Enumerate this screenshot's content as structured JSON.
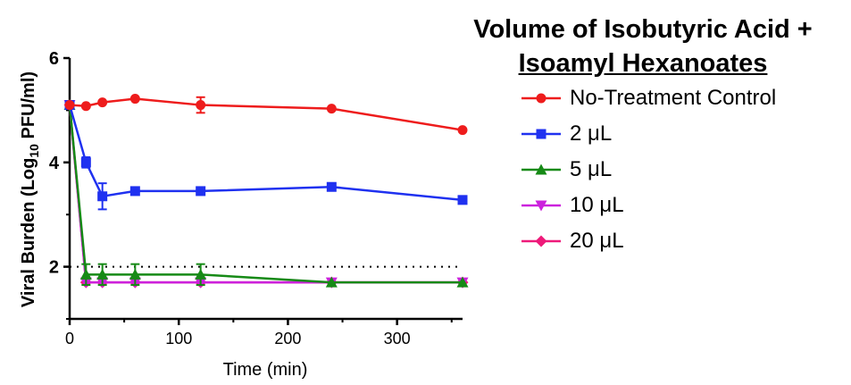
{
  "chart_data": {
    "type": "line",
    "title_line1": "Volume of Isobutyric Acid +",
    "title_line2": "Isoamyl Hexanoates",
    "ylabel_pre": "Viral Burden (Log",
    "ylabel_sub": "10",
    "ylabel_post": " PFU/ml)",
    "xlabel": "Time (min)",
    "xlim": [
      0,
      360
    ],
    "ylim": [
      1,
      6
    ],
    "xticks": [
      0,
      100,
      200,
      300
    ],
    "yticks": [
      2,
      4,
      6
    ],
    "reference_line": {
      "y": 2,
      "style": "dotted"
    },
    "series": [
      {
        "name": "No-Treatment Control",
        "color": "#ee1c1c",
        "marker": "circle",
        "x": [
          0,
          15,
          30,
          60,
          120,
          240,
          360
        ],
        "y": [
          5.1,
          5.08,
          5.15,
          5.22,
          5.1,
          5.03,
          4.62
        ],
        "err": [
          0,
          0,
          0,
          0,
          0.15,
          0,
          0
        ]
      },
      {
        "name": "2 μL",
        "color": "#1f31f0",
        "marker": "square",
        "x": [
          0,
          15,
          30,
          60,
          120,
          240,
          360
        ],
        "y": [
          5.1,
          4.0,
          3.35,
          3.45,
          3.45,
          3.53,
          3.28
        ],
        "err": [
          0,
          0.1,
          0.25,
          0,
          0,
          0,
          0
        ]
      },
      {
        "name": "5 μL",
        "color": "#168a16",
        "marker": "triangle-up",
        "x": [
          0,
          15,
          30,
          60,
          120,
          240,
          360
        ],
        "y": [
          5.1,
          1.85,
          1.85,
          1.85,
          1.85,
          1.7,
          1.7
        ],
        "err": [
          0,
          0.2,
          0.2,
          0.2,
          0.2,
          0,
          0
        ]
      },
      {
        "name": "10 μL",
        "color": "#cc22dd",
        "marker": "triangle-down",
        "x": [
          0,
          15,
          30,
          60,
          120,
          240,
          360
        ],
        "y": [
          5.1,
          1.7,
          1.7,
          1.7,
          1.7,
          1.7,
          1.7
        ],
        "err": [
          0,
          0,
          0,
          0,
          0,
          0,
          0
        ]
      },
      {
        "name": "20 μL",
        "color": "#ee1a7a",
        "marker": "diamond",
        "x": [
          0,
          15,
          30,
          60,
          120,
          240,
          360
        ],
        "y": [
          5.1,
          1.7,
          1.7,
          1.7,
          1.7,
          1.7,
          1.7
        ],
        "err": [
          0,
          0,
          0,
          0,
          0,
          0,
          0
        ]
      }
    ]
  }
}
